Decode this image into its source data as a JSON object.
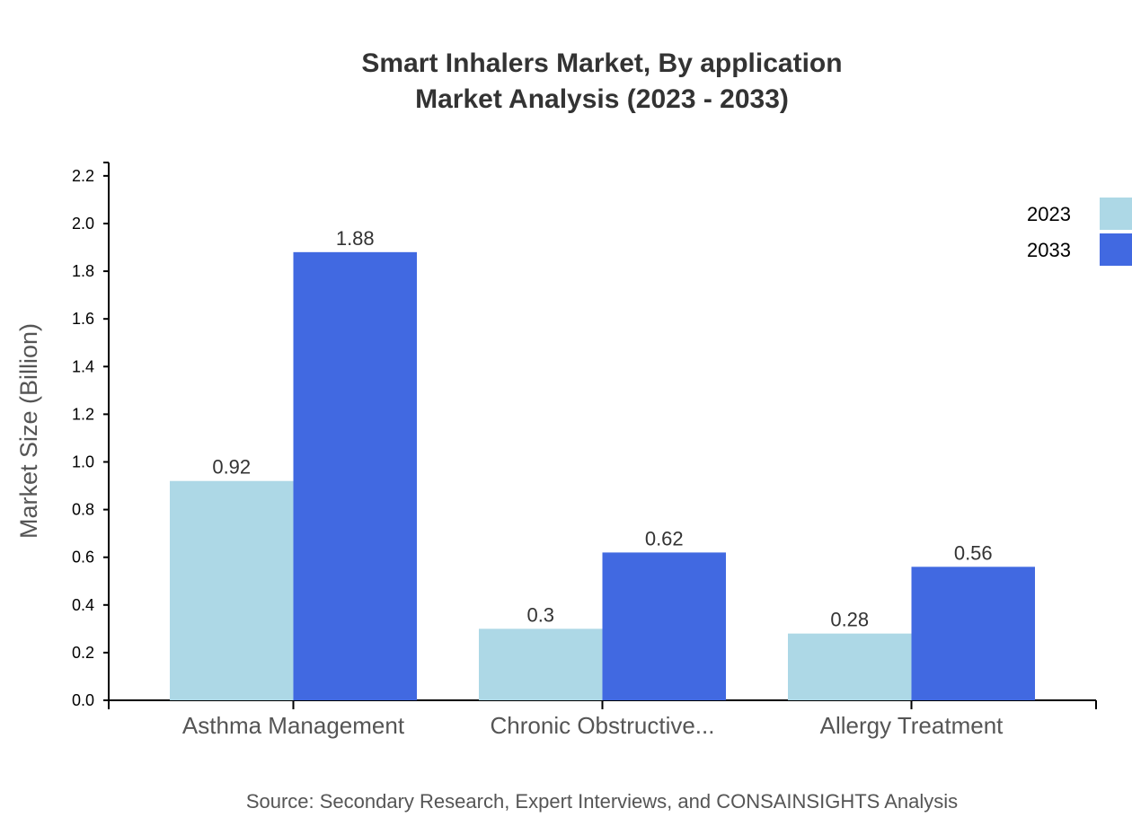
{
  "chart_data": {
    "type": "bar",
    "title": "Smart Inhalers Market, By application",
    "subtitle": "Market Analysis (2023 - 2033)",
    "xlabel": "",
    "ylabel": "Market Size (Billion)",
    "ylim": [
      0,
      2.256
    ],
    "yticks": [
      "0.0",
      "0.2",
      "0.4",
      "0.6",
      "0.8",
      "1.0",
      "1.2",
      "1.4",
      "1.6",
      "1.8",
      "2.0",
      "2.2"
    ],
    "categories": [
      "Asthma Management",
      "Chronic Obstructive...",
      "Allergy Treatment"
    ],
    "series": [
      {
        "name": "2023",
        "values": [
          0.92,
          0.3,
          0.28
        ],
        "labels": [
          "0.92",
          "0.3",
          "0.28"
        ],
        "color": "#add8e6"
      },
      {
        "name": "2033",
        "values": [
          1.88,
          0.62,
          0.56
        ],
        "labels": [
          "1.88",
          "0.62",
          "0.56"
        ],
        "color": "#4169e1"
      }
    ],
    "grid": false,
    "legend": "top-right",
    "source": "Source: Secondary Research, Expert Interviews, and CONSAINSIGHTS Analysis"
  }
}
